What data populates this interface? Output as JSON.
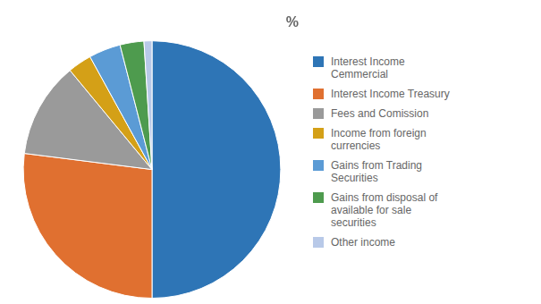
{
  "chart_data": {
    "type": "pie",
    "title": "%",
    "categories": [
      "Interest Income\nCemmercial",
      "Interest Income Treasury",
      "Fees and Comission",
      "Income from foreign\ncurrencies",
      "Gains from Trading\nSecurities",
      "Gains from disposal of\navailable for sale\nsecurities",
      "Other income"
    ],
    "values": [
      50,
      27,
      12,
      3,
      4,
      3,
      1
    ],
    "colors": [
      "#2e75b6",
      "#e07030",
      "#9a9a9a",
      "#d4a017",
      "#5b9bd5",
      "#4e9b4e",
      "#b8c9e8"
    ],
    "legend": "right"
  }
}
